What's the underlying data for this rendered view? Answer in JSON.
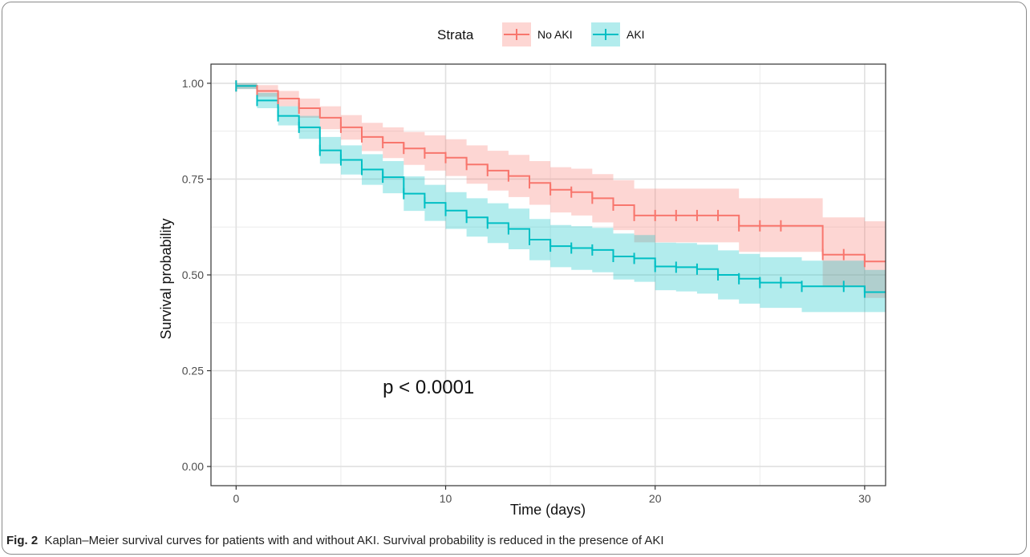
{
  "chart_data": {
    "type": "line",
    "subtype": "kaplan-meier step curves with confidence bands",
    "title": "",
    "xlabel": "Time (days)",
    "ylabel": "Survival probability",
    "xlim": [
      -1.2,
      31
    ],
    "ylim": [
      -0.05,
      1.05
    ],
    "x_ticks": [
      0,
      10,
      20,
      30
    ],
    "y_ticks": [
      0.0,
      0.25,
      0.5,
      0.75,
      1.0
    ],
    "x_tick_labels": [
      "0",
      "10",
      "20",
      "30"
    ],
    "y_tick_labels": [
      "0.00",
      "0.25",
      "0.50",
      "0.75",
      "1.00"
    ],
    "grid": true,
    "legend_title": "Strata",
    "legend_position": "top",
    "annotation": "p < 0.0001",
    "annotation_at": [
      7,
      0.19
    ],
    "series": [
      {
        "name": "No AKI",
        "color": "#f8766d",
        "band_color": "#f8766d",
        "steps": [
          [
            0,
            0.993
          ],
          [
            1,
            0.98
          ],
          [
            2,
            0.96
          ],
          [
            3,
            0.935
          ],
          [
            4,
            0.91
          ],
          [
            5,
            0.885
          ],
          [
            6,
            0.86
          ],
          [
            7,
            0.845
          ],
          [
            8,
            0.83
          ],
          [
            9,
            0.818
          ],
          [
            10,
            0.806
          ],
          [
            11,
            0.788
          ],
          [
            12,
            0.772
          ],
          [
            13,
            0.758
          ],
          [
            14,
            0.74
          ],
          [
            15,
            0.722
          ],
          [
            16,
            0.716
          ],
          [
            17,
            0.7
          ],
          [
            18,
            0.682
          ],
          [
            19,
            0.655
          ],
          [
            24,
            0.628
          ],
          [
            28,
            0.553
          ],
          [
            30,
            0.535
          ]
        ],
        "lower": [
          0.985,
          0.965,
          0.94,
          0.91,
          0.88,
          0.853,
          0.823,
          0.805,
          0.787,
          0.772,
          0.758,
          0.738,
          0.72,
          0.703,
          0.683,
          0.663,
          0.655,
          0.637,
          0.617,
          0.585,
          0.56,
          0.47,
          0.44
        ],
        "upper": [
          1.0,
          0.995,
          0.98,
          0.96,
          0.94,
          0.917,
          0.897,
          0.885,
          0.873,
          0.864,
          0.854,
          0.838,
          0.824,
          0.813,
          0.797,
          0.781,
          0.777,
          0.763,
          0.747,
          0.725,
          0.7,
          0.65,
          0.64
        ],
        "censor_x": [
          0,
          1,
          2,
          3,
          5,
          6,
          7,
          8,
          9,
          10,
          11,
          12,
          13,
          14,
          15,
          16,
          17,
          18,
          19,
          20,
          21,
          22,
          23,
          24,
          25,
          26,
          28,
          29,
          30
        ]
      },
      {
        "name": "AKI",
        "color": "#00bfc4",
        "band_color": "#00bfc4",
        "steps": [
          [
            0,
            0.993
          ],
          [
            1,
            0.955
          ],
          [
            2,
            0.915
          ],
          [
            3,
            0.885
          ],
          [
            4,
            0.825
          ],
          [
            5,
            0.8
          ],
          [
            6,
            0.775
          ],
          [
            7,
            0.755
          ],
          [
            8,
            0.712
          ],
          [
            9,
            0.688
          ],
          [
            10,
            0.668
          ],
          [
            11,
            0.65
          ],
          [
            12,
            0.635
          ],
          [
            13,
            0.62
          ],
          [
            14,
            0.592
          ],
          [
            15,
            0.575
          ],
          [
            16,
            0.57
          ],
          [
            17,
            0.565
          ],
          [
            18,
            0.548
          ],
          [
            19,
            0.543
          ],
          [
            20,
            0.522
          ],
          [
            21,
            0.52
          ],
          [
            22,
            0.515
          ],
          [
            23,
            0.5
          ],
          [
            24,
            0.49
          ],
          [
            25,
            0.48
          ],
          [
            27,
            0.47
          ],
          [
            30,
            0.455
          ]
        ],
        "lower": [
          0.985,
          0.935,
          0.89,
          0.855,
          0.79,
          0.762,
          0.735,
          0.713,
          0.667,
          0.641,
          0.62,
          0.6,
          0.583,
          0.567,
          0.538,
          0.52,
          0.513,
          0.507,
          0.488,
          0.482,
          0.46,
          0.457,
          0.451,
          0.436,
          0.425,
          0.414,
          0.403,
          0.403
        ],
        "upper": [
          1.0,
          0.975,
          0.94,
          0.915,
          0.86,
          0.838,
          0.815,
          0.797,
          0.757,
          0.735,
          0.716,
          0.7,
          0.687,
          0.673,
          0.646,
          0.63,
          0.627,
          0.623,
          0.608,
          0.604,
          0.584,
          0.583,
          0.579,
          0.564,
          0.555,
          0.546,
          0.537,
          0.513
        ],
        "censor_x": [
          0,
          1,
          2,
          3,
          4,
          5,
          6,
          7,
          8,
          9,
          10,
          11,
          12,
          13,
          14,
          15,
          16,
          17,
          18,
          19,
          20,
          21,
          22,
          23,
          24,
          25,
          26,
          27,
          29,
          30
        ]
      }
    ]
  },
  "caption": {
    "label": "Fig. 2",
    "text": "Kaplan–Meier survival curves for patients with and without AKI. Survival probability is reduced in the presence of AKI"
  }
}
